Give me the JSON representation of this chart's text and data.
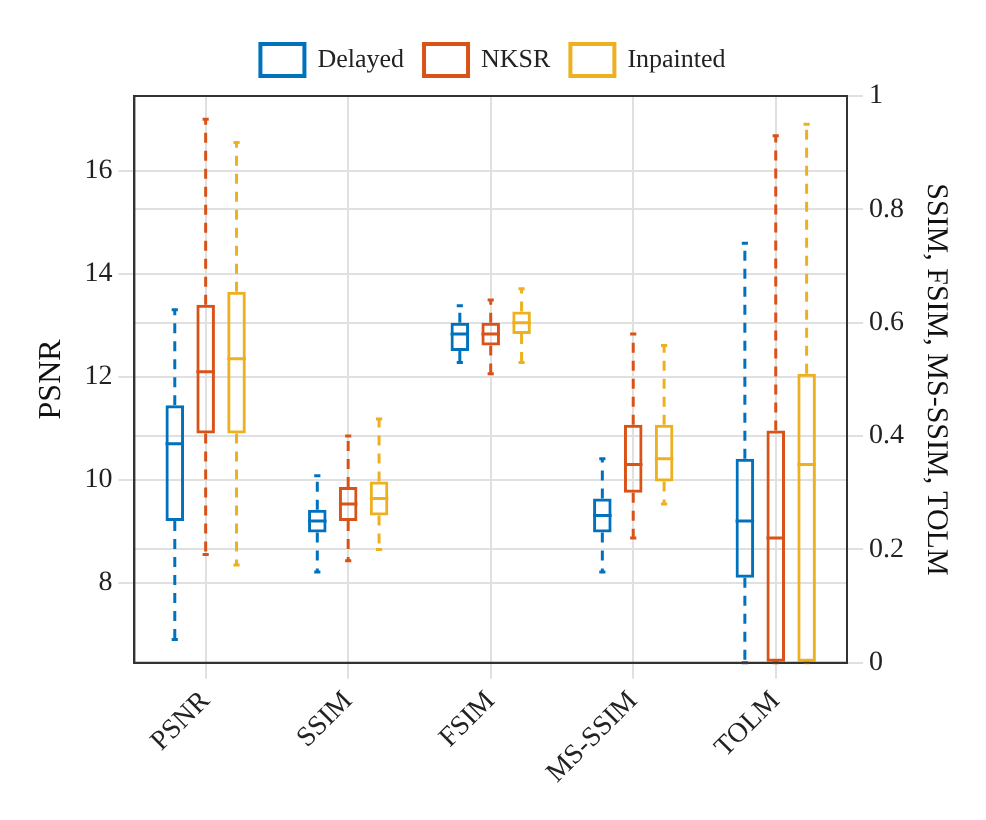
{
  "chart_data": {
    "type": "box",
    "categories": [
      "PSNR",
      "SSIM",
      "FSIM",
      "MS-SSIM",
      "TOLM"
    ],
    "ylabel": "PSNR",
    "y2label": "SSIM, FSIM, MS-SSIM, TOLM",
    "ylim": [
      6.45,
      17.45
    ],
    "yticks": [
      8,
      10,
      12,
      14,
      16
    ],
    "y2lim": [
      0,
      1
    ],
    "y2ticks": [
      0,
      0.2,
      0.4,
      0.6,
      0.8,
      1
    ],
    "grid": true,
    "legend": "top",
    "series": [
      {
        "name": "Delayed",
        "color": "#0072bd",
        "axis": "y",
        "boxes": [
          {
            "low": 6.9,
            "q1": 9.2,
            "median": 10.7,
            "q3": 11.45,
            "high": 13.3
          },
          null,
          null,
          null,
          null
        ]
      },
      {
        "name": "NKSR",
        "color": "#d95319",
        "axis": "y",
        "boxes": [
          {
            "low": 8.55,
            "q1": 10.9,
            "median": 12.1,
            "q3": 13.4,
            "high": 17.0
          },
          null,
          null,
          null,
          null
        ]
      },
      {
        "name": "Inpainted",
        "color": "#edb120",
        "axis": "y",
        "boxes": [
          {
            "low": 8.35,
            "q1": 10.9,
            "median": 12.35,
            "q3": 13.65,
            "high": 16.55
          },
          null,
          null,
          null,
          null
        ]
      },
      {
        "color": "#0072bd",
        "axis": "y2",
        "boxes": [
          null,
          {
            "low": 0.16,
            "q1": 0.23,
            "median": 0.25,
            "q3": 0.27,
            "high": 0.33
          },
          {
            "low": 0.53,
            "q1": 0.55,
            "median": 0.58,
            "q3": 0.6,
            "high": 0.63
          },
          {
            "low": 0.16,
            "q1": 0.23,
            "median": 0.26,
            "q3": 0.29,
            "high": 0.36
          },
          {
            "low": 0,
            "q1": 0.15,
            "median": 0.25,
            "q3": 0.36,
            "high": 0.74
          }
        ]
      },
      {
        "color": "#d95319",
        "axis": "y2",
        "boxes": [
          null,
          {
            "low": 0.18,
            "q1": 0.25,
            "median": 0.28,
            "q3": 0.31,
            "high": 0.4
          },
          {
            "low": 0.51,
            "q1": 0.56,
            "median": 0.58,
            "q3": 0.6,
            "high": 0.64
          },
          {
            "low": 0.22,
            "q1": 0.3,
            "median": 0.35,
            "q3": 0.42,
            "high": 0.58
          },
          {
            "low": 0,
            "q1": 0,
            "median": 0.22,
            "q3": 0.41,
            "high": 0.93
          }
        ]
      },
      {
        "color": "#edb120",
        "axis": "y2",
        "boxes": [
          null,
          {
            "low": 0.2,
            "q1": 0.26,
            "median": 0.29,
            "q3": 0.32,
            "high": 0.43
          },
          {
            "low": 0.53,
            "q1": 0.58,
            "median": 0.6,
            "q3": 0.62,
            "high": 0.66
          },
          {
            "low": 0.28,
            "q1": 0.32,
            "median": 0.36,
            "q3": 0.42,
            "high": 0.56
          },
          {
            "low": 0,
            "q1": 0,
            "median": 0.35,
            "q3": 0.51,
            "high": 0.95
          }
        ]
      }
    ]
  }
}
